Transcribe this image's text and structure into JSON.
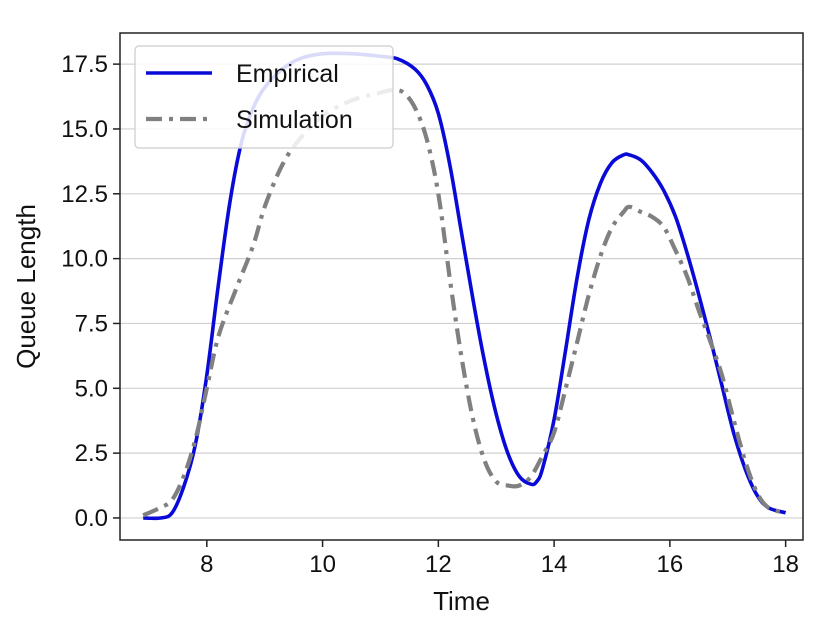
{
  "chart_data": {
    "type": "line",
    "title": "",
    "xlabel": "Time",
    "ylabel": "Queue Length",
    "xlim": [
      6.5,
      18.3
    ],
    "ylim": [
      -0.85,
      18.7
    ],
    "xticks": [
      8,
      10,
      12,
      14,
      16,
      18
    ],
    "yticks": [
      0.0,
      2.5,
      5.0,
      7.5,
      10.0,
      12.5,
      15.0,
      17.5
    ],
    "grid": "horizontal",
    "legend_position": "top-left",
    "series": [
      {
        "name": "Empirical",
        "color": "#0a0ad8",
        "style": "solid",
        "x": [
          6.9,
          7.2,
          7.4,
          7.6,
          7.8,
          8.0,
          8.2,
          8.4,
          8.6,
          8.8,
          9.0,
          9.3,
          9.6,
          10.0,
          10.5,
          11.0,
          11.3,
          11.6,
          11.8,
          12.0,
          12.2,
          12.4,
          12.6,
          12.8,
          13.0,
          13.2,
          13.4,
          13.6,
          13.7,
          13.8,
          14.0,
          14.2,
          14.4,
          14.6,
          14.8,
          15.0,
          15.2,
          15.3,
          15.5,
          15.7,
          15.9,
          16.1,
          16.3,
          16.5,
          16.7,
          16.9,
          17.1,
          17.3,
          17.5,
          17.7,
          18.0
        ],
        "values": [
          0.0,
          0.0,
          0.2,
          1.2,
          2.8,
          5.5,
          9.0,
          12.2,
          14.5,
          15.8,
          16.6,
          17.3,
          17.7,
          17.9,
          17.9,
          17.8,
          17.7,
          17.3,
          16.7,
          15.6,
          13.6,
          11.0,
          8.4,
          6.0,
          4.0,
          2.5,
          1.6,
          1.3,
          1.4,
          1.9,
          3.8,
          6.5,
          9.3,
          11.5,
          12.9,
          13.7,
          14.0,
          14.0,
          13.8,
          13.3,
          12.6,
          11.6,
          10.2,
          8.6,
          6.9,
          5.1,
          3.3,
          1.9,
          0.9,
          0.4,
          0.2
        ]
      },
      {
        "name": "Simulation",
        "color": "#808080",
        "style": "dash-dot",
        "x": [
          6.9,
          7.2,
          7.4,
          7.6,
          7.8,
          8.0,
          8.2,
          8.5,
          8.8,
          9.0,
          9.3,
          9.6,
          10.0,
          10.5,
          11.0,
          11.2,
          11.4,
          11.6,
          11.8,
          12.0,
          12.2,
          12.4,
          12.6,
          12.8,
          13.0,
          13.2,
          13.4,
          13.6,
          13.8,
          14.0,
          14.2,
          14.4,
          14.6,
          14.8,
          15.0,
          15.2,
          15.3,
          15.5,
          15.7,
          15.9,
          16.1,
          16.3,
          16.5,
          16.7,
          16.9,
          17.1,
          17.3,
          17.5,
          17.7,
          18.0
        ],
        "values": [
          0.1,
          0.4,
          0.7,
          1.6,
          3.0,
          5.0,
          7.0,
          8.8,
          10.5,
          12.0,
          13.6,
          14.6,
          15.5,
          16.1,
          16.4,
          16.5,
          16.4,
          15.8,
          14.6,
          12.5,
          9.2,
          6.2,
          3.8,
          2.2,
          1.4,
          1.25,
          1.25,
          1.6,
          2.4,
          3.3,
          5.0,
          6.8,
          8.6,
          10.1,
          11.2,
          11.8,
          12.0,
          11.8,
          11.6,
          11.2,
          10.3,
          9.3,
          8.0,
          6.8,
          5.5,
          3.8,
          2.2,
          1.0,
          0.4,
          0.2
        ]
      }
    ]
  }
}
